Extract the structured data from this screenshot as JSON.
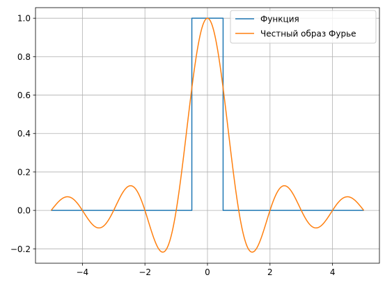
{
  "chart_data": {
    "type": "line",
    "title": "",
    "xlabel": "",
    "ylabel": "",
    "xlim": [
      -5.5,
      5.5
    ],
    "ylim": [
      -0.275,
      1.055
    ],
    "xticks": [
      -4,
      -2,
      0,
      2,
      4
    ],
    "yticks": [
      -0.2,
      0.0,
      0.2,
      0.4,
      0.6,
      0.8,
      1.0
    ],
    "xtick_labels": [
      "−4",
      "−2",
      "0",
      "2",
      "4"
    ],
    "ytick_labels": [
      "−0.2",
      "0.0",
      "0.2",
      "0.4",
      "0.6",
      "0.8",
      "1.0"
    ],
    "grid": true,
    "legend_position": "top-right",
    "series": [
      {
        "name": "Функция",
        "color": "#1f77b4",
        "x": [
          -5,
          -0.5,
          -0.5,
          0.5,
          0.5,
          5
        ],
        "y": [
          0,
          0,
          1,
          1,
          0,
          0
        ]
      },
      {
        "name": "Честный образ Фурье",
        "color": "#ff7f0e",
        "function": "sinc",
        "x_range": [
          -5,
          5
        ],
        "x_sample": [
          -5,
          -4.5,
          -4,
          -3.5,
          -3,
          -2.5,
          -2,
          -1.5,
          -1,
          -0.5,
          0,
          0.5,
          1,
          1.5,
          2,
          2.5,
          3,
          3.5,
          4,
          4.5,
          5
        ],
        "y_sample": [
          0,
          0.071,
          0,
          -0.091,
          0,
          0.127,
          0,
          -0.212,
          0,
          0.637,
          1,
          0.637,
          0,
          -0.212,
          0,
          0.127,
          0,
          -0.091,
          0,
          0.071,
          0
        ]
      }
    ]
  }
}
